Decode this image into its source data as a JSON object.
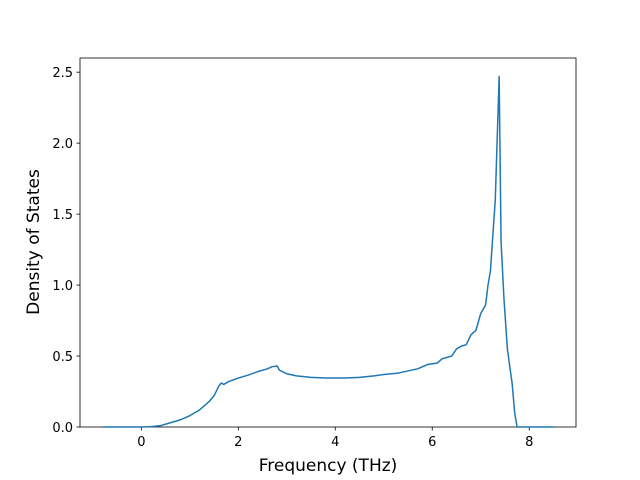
{
  "chart_data": {
    "type": "line",
    "xlabel": "Frequency (THz)",
    "ylabel": "Density of States",
    "x": [
      -0.8,
      0,
      0.2,
      0.4,
      0.6,
      0.8,
      1.0,
      1.2,
      1.4,
      1.5,
      1.6,
      1.65,
      1.7,
      1.8,
      2.0,
      2.2,
      2.4,
      2.6,
      2.7,
      2.8,
      2.85,
      3.0,
      3.2,
      3.5,
      3.8,
      4.2,
      4.5,
      4.8,
      5.0,
      5.3,
      5.5,
      5.7,
      5.9,
      6.1,
      6.2,
      6.4,
      6.5,
      6.6,
      6.7,
      6.8,
      6.9,
      7.0,
      7.1,
      7.15,
      7.2,
      7.3,
      7.38,
      7.42,
      7.48,
      7.55,
      7.65,
      7.7,
      7.75,
      8.0,
      8.5
    ],
    "values": [
      0,
      0,
      0.003,
      0.01,
      0.03,
      0.05,
      0.08,
      0.12,
      0.18,
      0.22,
      0.29,
      0.31,
      0.3,
      0.32,
      0.345,
      0.365,
      0.39,
      0.41,
      0.425,
      0.43,
      0.4,
      0.375,
      0.36,
      0.35,
      0.345,
      0.345,
      0.35,
      0.36,
      0.37,
      0.38,
      0.395,
      0.41,
      0.44,
      0.45,
      0.48,
      0.5,
      0.55,
      0.57,
      0.58,
      0.65,
      0.68,
      0.8,
      0.86,
      1.0,
      1.1,
      1.6,
      2.47,
      1.3,
      0.9,
      0.55,
      0.3,
      0.1,
      0,
      0,
      0
    ],
    "color": "#1f77b4",
    "xlim": [
      -1.265,
      8.965
    ],
    "xticks": [
      0,
      2,
      4,
      6,
      8
    ],
    "ylim": [
      0,
      2.6
    ],
    "yticks": [
      {
        "value": 0,
        "label": "0.0"
      },
      0.5,
      {
        "value": 1,
        "label": "1.0"
      },
      1.5,
      {
        "value": 2,
        "label": "2.0"
      },
      2.5
    ]
  }
}
